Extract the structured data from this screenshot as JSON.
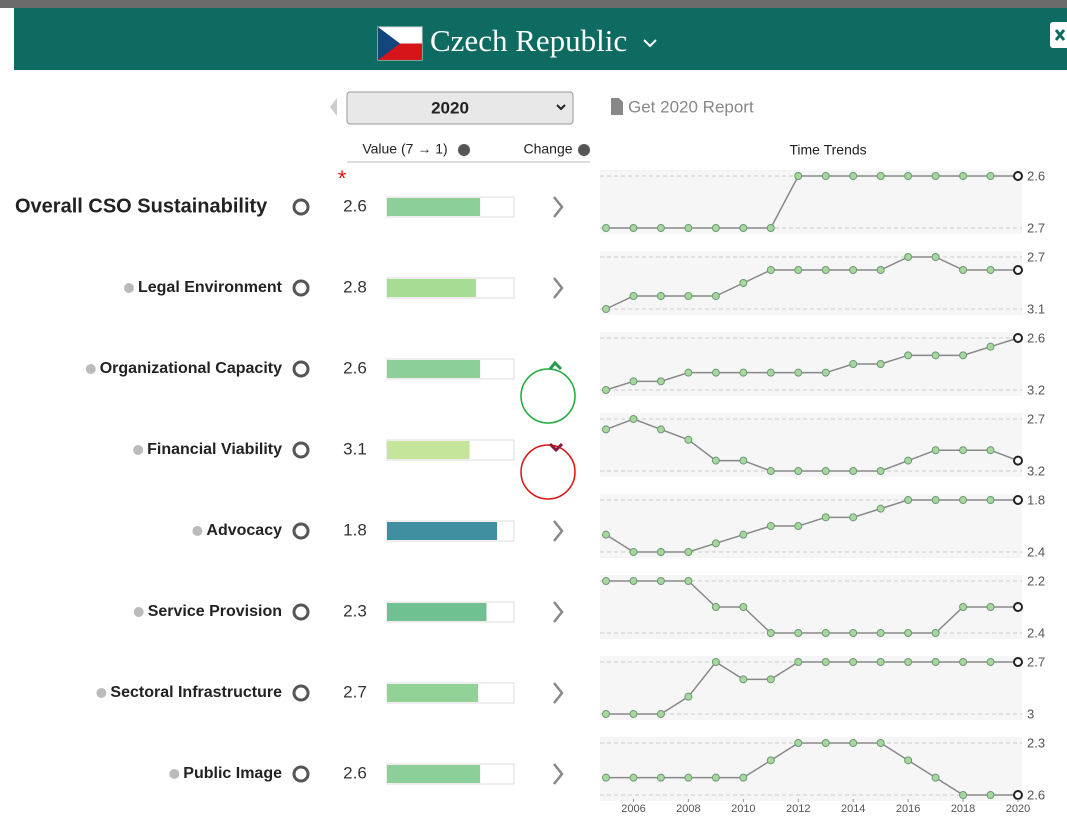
{
  "header": {
    "country": "Czech Republic"
  },
  "year_select": "2020",
  "report_link": "Get 2020 Report",
  "columns": {
    "value": "Value (7 → 1)",
    "change": "Change",
    "trends": "Time Trends"
  },
  "annotation": "*",
  "chart_data": {
    "type": "line",
    "vlim": [
      7,
      1
    ],
    "x": [
      2005,
      2006,
      2007,
      2008,
      2009,
      2010,
      2011,
      2012,
      2013,
      2014,
      2015,
      2016,
      2017,
      2018,
      2019,
      2020
    ],
    "xlim": [
      2005,
      2020
    ],
    "xticks": [
      2006,
      2008,
      2010,
      2012,
      2014,
      2016,
      2018,
      2020
    ],
    "series": [
      {
        "name": "Overall CSO Sustainability",
        "value": 2.6,
        "color": "#8dcf98",
        "ylim": [
          2.7,
          2.6
        ],
        "yticks": [
          2.6,
          2.7
        ],
        "values": [
          2.7,
          2.7,
          2.7,
          2.7,
          2.7,
          2.7,
          2.7,
          2.6,
          2.6,
          2.6,
          2.6,
          2.6,
          2.6,
          2.6,
          2.6,
          2.6
        ]
      },
      {
        "name": "Legal Environment",
        "value": 2.8,
        "color": "#a6dc94",
        "ylim": [
          3.1,
          2.7
        ],
        "yticks": [
          2.7,
          3.1
        ],
        "values": [
          3.1,
          3.0,
          3.0,
          3.0,
          3.0,
          2.9,
          2.8,
          2.8,
          2.8,
          2.8,
          2.8,
          2.7,
          2.7,
          2.8,
          2.8,
          2.8
        ]
      },
      {
        "name": "Organizational Capacity",
        "value": 2.6,
        "color": "#8dcf98",
        "ylim": [
          3.2,
          2.6
        ],
        "yticks": [
          2.6,
          3.2
        ],
        "values": [
          3.2,
          3.1,
          3.1,
          3.0,
          3.0,
          3.0,
          3.0,
          3.0,
          3.0,
          2.9,
          2.9,
          2.8,
          2.8,
          2.8,
          2.7,
          2.6
        ]
      },
      {
        "name": "Financial Viability",
        "value": 3.1,
        "color": "#c4e59a",
        "ylim": [
          3.2,
          2.7
        ],
        "yticks": [
          2.7,
          3.2
        ],
        "values": [
          2.8,
          2.7,
          2.8,
          2.9,
          3.1,
          3.1,
          3.2,
          3.2,
          3.2,
          3.2,
          3.2,
          3.1,
          3.0,
          3.0,
          3.0,
          3.1
        ]
      },
      {
        "name": "Advocacy",
        "value": 1.8,
        "color": "#3f8fa0",
        "ylim": [
          2.4,
          1.8
        ],
        "yticks": [
          1.8,
          2.4
        ],
        "values": [
          2.2,
          2.4,
          2.4,
          2.4,
          2.3,
          2.2,
          2.1,
          2.1,
          2.0,
          2.0,
          1.9,
          1.8,
          1.8,
          1.8,
          1.8,
          1.8
        ]
      },
      {
        "name": "Service Provision",
        "value": 2.3,
        "color": "#6fc092",
        "ylim": [
          2.4,
          2.2
        ],
        "yticks": [
          2.2,
          2.4
        ],
        "values": [
          2.2,
          2.2,
          2.2,
          2.2,
          2.3,
          2.3,
          2.4,
          2.4,
          2.4,
          2.4,
          2.4,
          2.4,
          2.4,
          2.3,
          2.3,
          2.3
        ]
      },
      {
        "name": "Sectoral Infrastructure",
        "value": 2.7,
        "color": "#93d297",
        "ylim": [
          3,
          2.7
        ],
        "yticks": [
          2.7,
          3
        ],
        "values": [
          3.0,
          3.0,
          3.0,
          2.9,
          2.7,
          2.8,
          2.8,
          2.7,
          2.7,
          2.7,
          2.7,
          2.7,
          2.7,
          2.7,
          2.7,
          2.7
        ]
      },
      {
        "name": "Public Image",
        "value": 2.6,
        "color": "#8dcf98",
        "ylim": [
          2.6,
          2.3
        ],
        "yticks": [
          2.3,
          2.6
        ],
        "values": [
          2.5,
          2.5,
          2.5,
          2.5,
          2.5,
          2.5,
          2.4,
          2.3,
          2.3,
          2.3,
          2.3,
          2.4,
          2.5,
          2.6,
          2.6,
          2.6
        ]
      }
    ]
  }
}
